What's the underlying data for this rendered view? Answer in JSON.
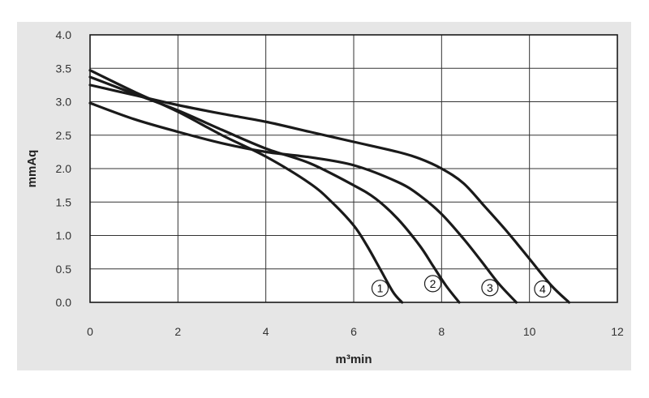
{
  "chart_data": {
    "type": "line",
    "xlabel": "m³min",
    "ylabel": "mmAq",
    "xlim": [
      0,
      12
    ],
    "ylim": [
      0,
      4
    ],
    "x_ticks": [
      "0",
      "2",
      "4",
      "6",
      "8",
      "10",
      "12"
    ],
    "y_ticks": [
      "0.0",
      "0.5",
      "1.0",
      "1.5",
      "2.0",
      "2.5",
      "3.0",
      "3.5",
      "4.0"
    ],
    "grid": true,
    "colors": {
      "panel": "#e6e6e6",
      "plot": "#ffffff",
      "line": "#1a1a1a",
      "grid": "#333333"
    },
    "series": [
      {
        "name": "1",
        "x": [
          0,
          1,
          2,
          3,
          4,
          5,
          5.5,
          6,
          6.3,
          6.6,
          6.9,
          7.1
        ],
        "y": [
          3.47,
          3.15,
          2.85,
          2.5,
          2.18,
          1.78,
          1.5,
          1.15,
          0.85,
          0.5,
          0.15,
          0.0
        ]
      },
      {
        "name": "2",
        "x": [
          0,
          1,
          2,
          3,
          4,
          5,
          6,
          6.5,
          7,
          7.5,
          7.8,
          8.1,
          8.4
        ],
        "y": [
          3.37,
          3.12,
          2.87,
          2.58,
          2.3,
          2.08,
          1.75,
          1.55,
          1.25,
          0.85,
          0.55,
          0.25,
          0.0
        ]
      },
      {
        "name": "3",
        "x": [
          0,
          1,
          2,
          3,
          4,
          5,
          6,
          7,
          7.5,
          8,
          8.5,
          8.9,
          9.3,
          9.7
        ],
        "y": [
          2.98,
          2.74,
          2.55,
          2.38,
          2.25,
          2.17,
          2.05,
          1.8,
          1.6,
          1.32,
          0.95,
          0.62,
          0.28,
          0.0
        ]
      },
      {
        "name": "4",
        "x": [
          0,
          1,
          2,
          3,
          4,
          5,
          6,
          7,
          7.5,
          8,
          8.5,
          9,
          9.5,
          10,
          10.5,
          10.9
        ],
        "y": [
          3.25,
          3.1,
          2.95,
          2.82,
          2.7,
          2.55,
          2.4,
          2.25,
          2.15,
          2.0,
          1.78,
          1.42,
          1.05,
          0.65,
          0.25,
          0.0
        ]
      }
    ],
    "series_labels": [
      {
        "text": "1",
        "x": 6.6,
        "y": 0.21
      },
      {
        "text": "2",
        "x": 7.8,
        "y": 0.28
      },
      {
        "text": "3",
        "x": 9.1,
        "y": 0.22
      },
      {
        "text": "4",
        "x": 10.3,
        "y": 0.2
      }
    ]
  }
}
